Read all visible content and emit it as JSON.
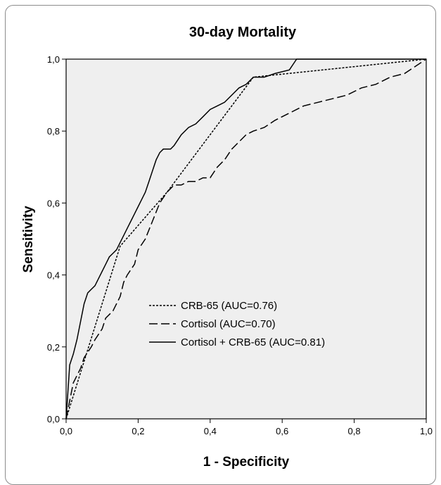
{
  "chart_data": {
    "type": "line",
    "title": "30-day Mortality",
    "xlabel": "1 - Specificity",
    "ylabel": "Sensitivity",
    "xlim": [
      0,
      1
    ],
    "ylim": [
      0,
      1
    ],
    "x_ticks": [
      "0,0",
      "0,2",
      "0,4",
      "0,6",
      "0,8",
      "1,0"
    ],
    "y_ticks": [
      "0,0",
      "0,2",
      "0,4",
      "0,6",
      "0,8",
      "1,0"
    ],
    "plot_background": "#efefef",
    "legend_position": "center",
    "series": [
      {
        "name": "CRB-65 (AUC=0.76)",
        "style": "dotted",
        "x": [
          0,
          0.15,
          0.28,
          0.52,
          1.0
        ],
        "y": [
          0,
          0.48,
          0.63,
          0.95,
          1.0
        ]
      },
      {
        "name": "Cortisol (AUC=0.70)",
        "style": "dashed",
        "x": [
          0,
          0.02,
          0.04,
          0.05,
          0.07,
          0.08,
          0.1,
          0.11,
          0.13,
          0.15,
          0.16,
          0.17,
          0.19,
          0.2,
          0.22,
          0.24,
          0.26,
          0.28,
          0.3,
          0.32,
          0.34,
          0.36,
          0.38,
          0.4,
          0.42,
          0.44,
          0.46,
          0.48,
          0.5,
          0.52,
          0.55,
          0.58,
          0.62,
          0.66,
          0.7,
          0.74,
          0.78,
          0.82,
          0.86,
          0.9,
          0.94,
          0.97,
          1.0
        ],
        "y": [
          0,
          0.1,
          0.14,
          0.17,
          0.2,
          0.22,
          0.25,
          0.28,
          0.3,
          0.34,
          0.38,
          0.4,
          0.43,
          0.47,
          0.5,
          0.55,
          0.6,
          0.63,
          0.65,
          0.65,
          0.66,
          0.66,
          0.67,
          0.67,
          0.7,
          0.72,
          0.75,
          0.77,
          0.79,
          0.8,
          0.81,
          0.83,
          0.85,
          0.87,
          0.88,
          0.89,
          0.9,
          0.92,
          0.93,
          0.95,
          0.96,
          0.98,
          1.0
        ]
      },
      {
        "name": "Cortisol + CRB-65 (AUC=0.81)",
        "style": "solid",
        "x": [
          0,
          0.01,
          0.02,
          0.03,
          0.04,
          0.05,
          0.06,
          0.07,
          0.08,
          0.09,
          0.1,
          0.11,
          0.12,
          0.13,
          0.14,
          0.15,
          0.16,
          0.17,
          0.18,
          0.19,
          0.2,
          0.21,
          0.22,
          0.23,
          0.24,
          0.25,
          0.26,
          0.27,
          0.28,
          0.29,
          0.3,
          0.32,
          0.34,
          0.36,
          0.38,
          0.4,
          0.42,
          0.44,
          0.46,
          0.48,
          0.5,
          0.52,
          0.55,
          0.58,
          0.62,
          0.64,
          0.7,
          0.8,
          0.9,
          1.0
        ],
        "y": [
          0,
          0.15,
          0.18,
          0.22,
          0.27,
          0.32,
          0.35,
          0.36,
          0.37,
          0.39,
          0.41,
          0.43,
          0.45,
          0.46,
          0.47,
          0.49,
          0.51,
          0.53,
          0.55,
          0.57,
          0.59,
          0.61,
          0.63,
          0.66,
          0.69,
          0.72,
          0.74,
          0.75,
          0.75,
          0.75,
          0.76,
          0.79,
          0.81,
          0.82,
          0.84,
          0.86,
          0.87,
          0.88,
          0.9,
          0.92,
          0.93,
          0.95,
          0.95,
          0.96,
          0.97,
          1.0,
          1.0,
          1.0,
          1.0,
          1.0
        ]
      }
    ]
  }
}
